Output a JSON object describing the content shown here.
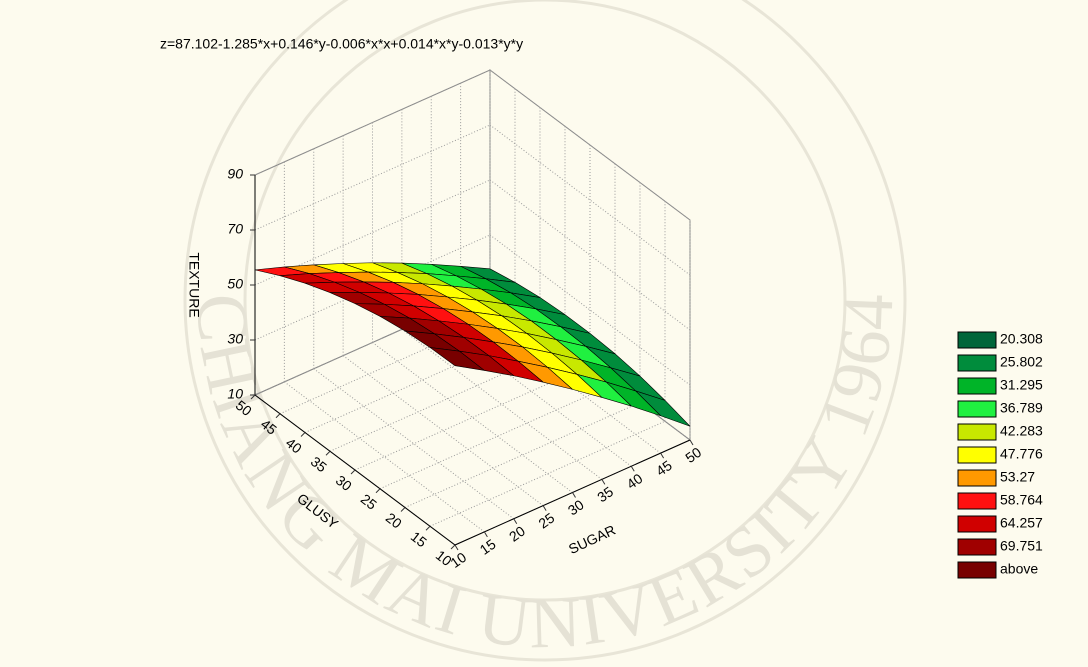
{
  "chart_data": {
    "type": "surface",
    "title": "z=87.102-1.285*x+0.146*y-0.006*x*x+0.014*x*y-0.013*y*y",
    "xlabel": "SUGAR",
    "ylabel": "GLUSY",
    "zlabel": "TEXTURE",
    "x": [
      10,
      15,
      20,
      25,
      30,
      35,
      40,
      45,
      50
    ],
    "y": [
      10,
      15,
      20,
      25,
      30,
      35,
      40,
      45,
      50
    ],
    "z": [
      [
        75.2,
        75.0,
        74.2,
        72.7,
        70.5,
        67.7,
        64.3,
        60.2,
        55.5
      ],
      [
        68.7,
        68.9,
        68.4,
        67.3,
        65.5,
        63.0,
        59.9,
        56.2,
        51.8
      ],
      [
        62.0,
        62.5,
        62.3,
        61.5,
        60.1,
        58.0,
        55.2,
        51.8,
        47.8
      ],
      [
        54.9,
        55.7,
        55.9,
        55.5,
        54.4,
        52.7,
        50.3,
        47.2,
        43.5
      ],
      [
        47.5,
        48.7,
        49.3,
        49.2,
        48.4,
        47.0,
        45.0,
        42.3,
        39.0
      ],
      [
        39.8,
        41.4,
        42.3,
        42.6,
        42.2,
        41.1,
        39.4,
        37.1,
        34.1
      ],
      [
        31.9,
        33.8,
        35.0,
        35.6,
        35.6,
        34.9,
        33.5,
        31.5,
        28.9
      ],
      [
        23.6,
        25.8,
        27.4,
        28.4,
        28.7,
        28.4,
        27.4,
        25.7,
        23.4
      ],
      [
        15.0,
        17.6,
        19.6,
        20.9,
        21.5,
        21.5,
        20.9,
        19.6,
        17.7
      ]
    ],
    "xlim": [
      10,
      50
    ],
    "ylim": [
      10,
      50
    ],
    "zlim": [
      10,
      90
    ],
    "xticks": [
      10,
      15,
      20,
      25,
      30,
      35,
      40,
      45,
      50
    ],
    "yticks": [
      10,
      15,
      20,
      25,
      30,
      35,
      40,
      45,
      50
    ],
    "zticks": [
      10,
      30,
      50,
      70,
      90
    ],
    "grid": true,
    "legend_position": "right",
    "legend": [
      {
        "value": 20.308,
        "color": "#00663a"
      },
      {
        "value": 25.802,
        "color": "#008c3c"
      },
      {
        "value": 31.295,
        "color": "#00b428"
      },
      {
        "value": 36.789,
        "color": "#20f040"
      },
      {
        "value": 42.283,
        "color": "#c8e800"
      },
      {
        "value": 47.776,
        "color": "#ffff00"
      },
      {
        "value": 53.27,
        "color": "#ff9900"
      },
      {
        "value": 58.764,
        "color": "#ff1010"
      },
      {
        "value": 64.257,
        "color": "#d00000"
      },
      {
        "value": 69.751,
        "color": "#a00000"
      },
      {
        "label": "above",
        "color": "#780000"
      }
    ]
  },
  "watermark": "CHIANG MAI UNIVERSITY 1964"
}
